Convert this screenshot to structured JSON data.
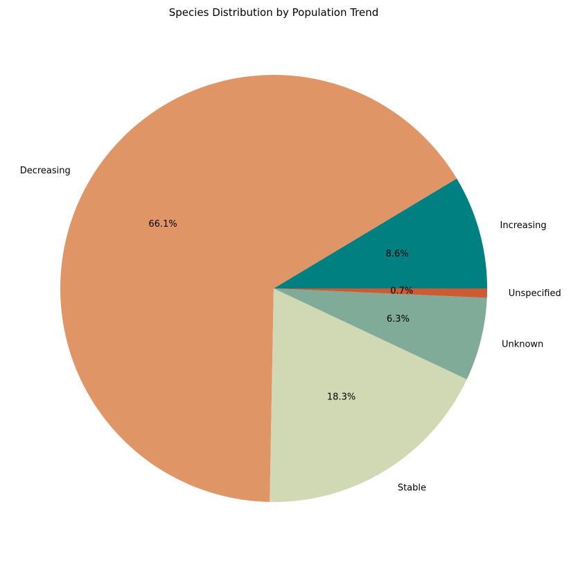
{
  "chart_data": {
    "type": "pie",
    "title": "Species Distribution by Population Trend",
    "start_angle_deg": 0,
    "direction": "counterclockwise",
    "slices": [
      {
        "label": "Increasing",
        "value": 8.6,
        "pct_label": "8.6%",
        "color": "#008080"
      },
      {
        "label": "Decreasing",
        "value": 66.1,
        "pct_label": "66.1%",
        "color": "#E09566"
      },
      {
        "label": "Stable",
        "value": 18.3,
        "pct_label": "18.3%",
        "color": "#D1D8B4"
      },
      {
        "label": "Unknown",
        "value": 6.3,
        "pct_label": "6.3%",
        "color": "#7FAB98"
      },
      {
        "label": "Unspecified",
        "value": 0.7,
        "pct_label": "0.7%",
        "color": "#CC5A33"
      }
    ]
  }
}
